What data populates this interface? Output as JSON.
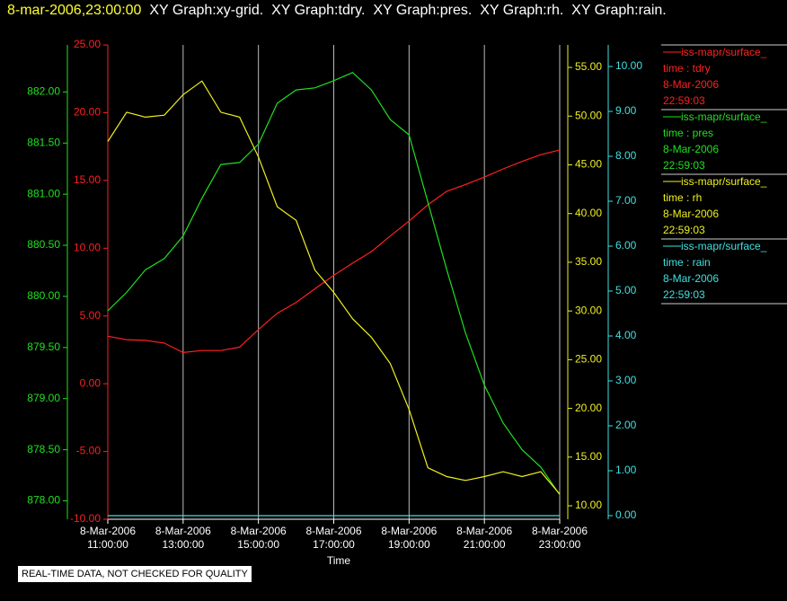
{
  "chart_data": {
    "type": "line",
    "timestamp": "8-mar-2006,23:00:00",
    "title": "XY Graph:xy-grid.  XY Graph:tdry.  XY Graph:pres.  XY Graph:rh.  XY Graph:rain.",
    "x_label": "Time",
    "footer": "REAL-TIME DATA, NOT CHECKED FOR QUALITY",
    "grid": true,
    "x": [
      11,
      11.5,
      12,
      12.5,
      13,
      13.5,
      14,
      14.5,
      15,
      15.5,
      16,
      16.5,
      17,
      17.5,
      18,
      18.5,
      19,
      19.5,
      20,
      20.5,
      21,
      21.5,
      22,
      22.5,
      23
    ],
    "xlim": [
      11,
      23
    ],
    "xticks": [
      {
        "value": 11,
        "label": "8-Mar-2006\n11:00:00"
      },
      {
        "value": 13,
        "label": "8-Mar-2006\n13:00:00"
      },
      {
        "value": 15,
        "label": "8-Mar-2006\n15:00:00"
      },
      {
        "value": 17,
        "label": "8-Mar-2006\n17:00:00"
      },
      {
        "value": 19,
        "label": "8-Mar-2006\n19:00:00"
      },
      {
        "value": 21,
        "label": "8-Mar-2006\n21:00:00"
      },
      {
        "value": 23,
        "label": "8-Mar-2006\n23:00:00"
      }
    ],
    "series": [
      {
        "name": "iss-mapr/surface_",
        "field": "time : tdry",
        "date": "8-Mar-2006",
        "time": "22:59:03",
        "color": "#ff2020",
        "ylim": [
          -10,
          25
        ],
        "yticks": [
          {
            "value": -10,
            "label": "-10.00"
          },
          {
            "value": -5,
            "label": "-5.00"
          },
          {
            "value": 0,
            "label": "0.00"
          },
          {
            "value": 5,
            "label": "5.00"
          },
          {
            "value": 10,
            "label": "10.00"
          },
          {
            "value": 15,
            "label": "15.00"
          },
          {
            "value": 20,
            "label": "20.00"
          },
          {
            "value": 25,
            "label": "25.00"
          }
        ],
        "values": [
          3.5,
          3.25,
          3.2,
          3.0,
          2.3,
          2.45,
          2.45,
          2.7,
          4.0,
          5.2,
          6.0,
          7.0,
          8.0,
          8.9,
          9.75,
          10.9,
          12.0,
          13.2,
          14.2,
          14.7,
          15.25,
          15.85,
          16.4,
          16.9,
          17.25
        ]
      },
      {
        "name": "iss-mapr/surface_",
        "field": "time : pres",
        "date": "8-Mar-2006",
        "time": "22:59:03",
        "color": "#20e020",
        "ylim": [
          877.82,
          882.46
        ],
        "yticks": [
          {
            "value": 878,
            "label": "878.00"
          },
          {
            "value": 878.5,
            "label": "878.50"
          },
          {
            "value": 879,
            "label": "879.00"
          },
          {
            "value": 879.5,
            "label": "879.50"
          },
          {
            "value": 880,
            "label": "880.00"
          },
          {
            "value": 880.5,
            "label": "880.50"
          },
          {
            "value": 881,
            "label": "881.00"
          },
          {
            "value": 881.5,
            "label": "881.50"
          },
          {
            "value": 882,
            "label": "882.00"
          }
        ],
        "values": [
          879.86,
          880.04,
          880.26,
          880.37,
          880.59,
          880.96,
          881.29,
          881.31,
          881.49,
          881.89,
          882.02,
          882.04,
          882.11,
          882.19,
          882.02,
          881.73,
          881.58,
          880.92,
          880.26,
          879.64,
          879.13,
          878.76,
          878.5,
          878.33,
          878.06
        ]
      },
      {
        "name": "iss-mapr/surface_",
        "field": "time : rh",
        "date": "8-Mar-2006",
        "time": "22:59:03",
        "color": "#f0f020",
        "ylim": [
          8.62,
          57.31
        ],
        "yticks": [
          {
            "value": 10,
            "label": "10.00"
          },
          {
            "value": 15,
            "label": "15.00"
          },
          {
            "value": 20,
            "label": "20.00"
          },
          {
            "value": 25,
            "label": "25.00"
          },
          {
            "value": 30,
            "label": "30.00"
          },
          {
            "value": 35,
            "label": "35.00"
          },
          {
            "value": 40,
            "label": "40.00"
          },
          {
            "value": 45,
            "label": "45.00"
          },
          {
            "value": 50,
            "label": "50.00"
          },
          {
            "value": 55,
            "label": "55.00"
          }
        ],
        "values": [
          47.4,
          50.4,
          49.9,
          50.1,
          52.2,
          53.6,
          50.4,
          49.9,
          45.8,
          40.7,
          39.3,
          34.2,
          31.9,
          29.2,
          27.3,
          24.6,
          19.9,
          13.9,
          13.0,
          12.6,
          13.0,
          13.5,
          13.0,
          13.5,
          11.2
        ]
      },
      {
        "name": "iss-mapr/surface_",
        "field": "time : rain",
        "date": "8-Mar-2006",
        "time": "22:59:03",
        "color": "#40e0e0",
        "ylim": [
          -0.08,
          10.48
        ],
        "yticks": [
          {
            "value": 0,
            "label": "0.00"
          },
          {
            "value": 1,
            "label": "1.00"
          },
          {
            "value": 2,
            "label": "2.00"
          },
          {
            "value": 3,
            "label": "3.00"
          },
          {
            "value": 4,
            "label": "4.00"
          },
          {
            "value": 5,
            "label": "5.00"
          },
          {
            "value": 6,
            "label": "6.00"
          },
          {
            "value": 7,
            "label": "7.00"
          },
          {
            "value": 8,
            "label": "8.00"
          },
          {
            "value": 9,
            "label": "9.00"
          },
          {
            "value": 10,
            "label": "10.00"
          }
        ],
        "values": [
          0,
          0,
          0,
          0,
          0,
          0,
          0,
          0,
          0,
          0,
          0,
          0,
          0,
          0,
          0,
          0,
          0,
          0,
          0,
          0,
          0,
          0,
          0,
          0,
          0
        ]
      }
    ]
  }
}
